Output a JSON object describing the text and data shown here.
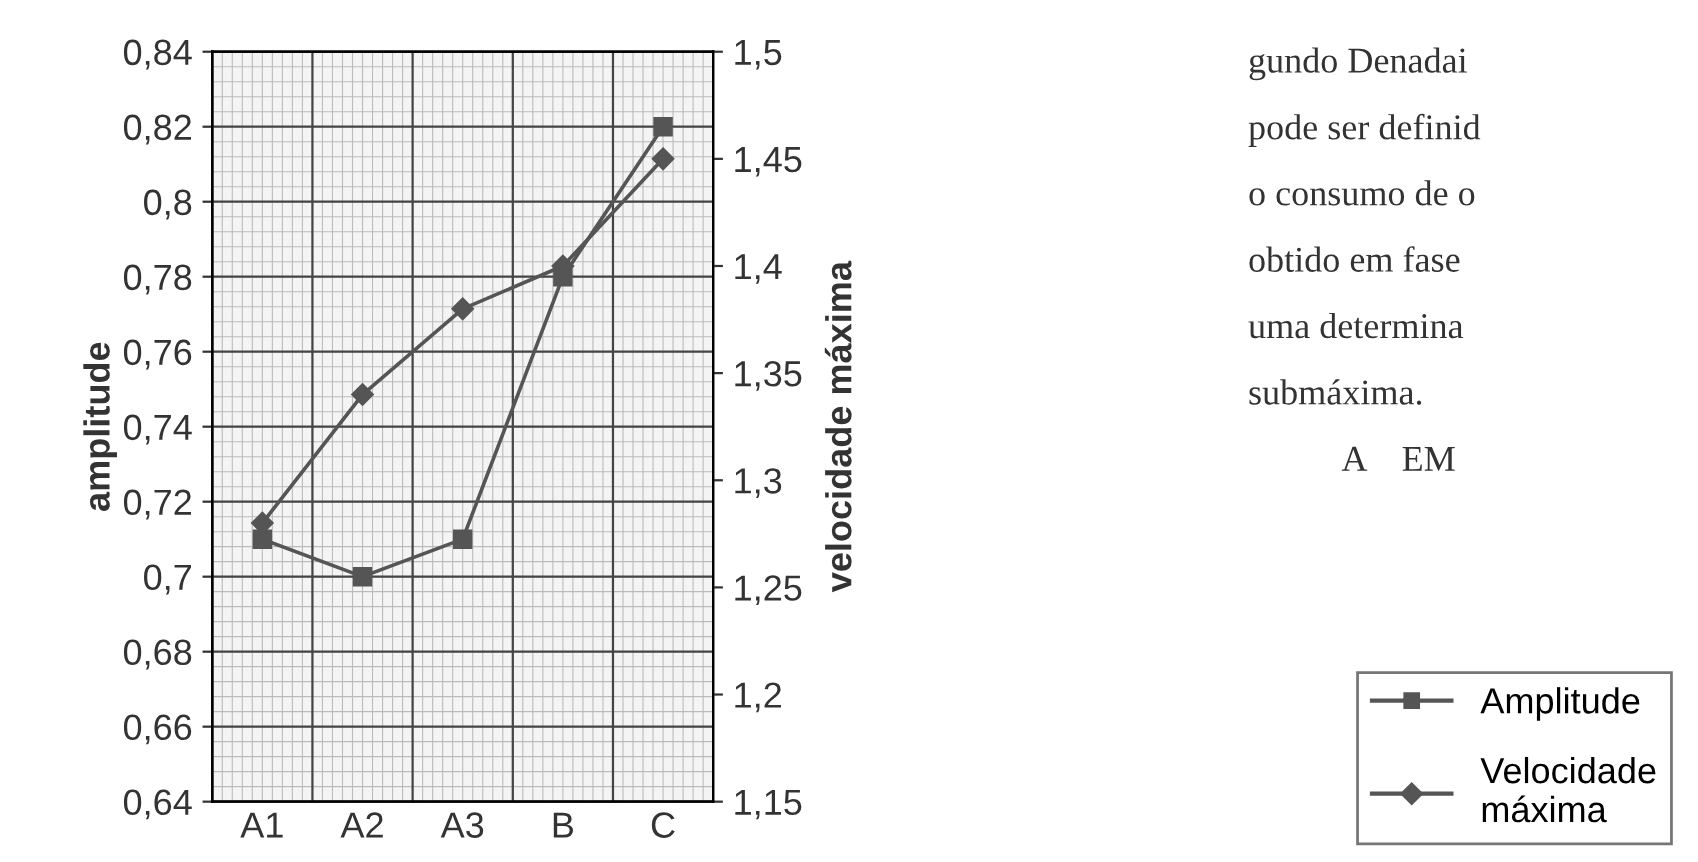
{
  "chart_data": {
    "type": "line",
    "ylabel": "amplitude",
    "y2label": "velocidade máxima",
    "categories": [
      "A1",
      "A2",
      "A3",
      "B",
      "C"
    ],
    "series": [
      {
        "name": "Amplitude",
        "color": "#555555",
        "values": [
          0.71,
          0.7,
          0.71,
          0.78,
          0.82
        ],
        "marker": "square"
      },
      {
        "name": "Velocidade máxima",
        "color": "#555555",
        "values": [
          1.28,
          1.34,
          1.38,
          1.4,
          1.45
        ],
        "marker": "diamond",
        "axis": "y2"
      }
    ],
    "ylim": [
      0.64,
      0.84
    ],
    "yticks": [
      {
        "value": 0.64,
        "label": "0,64"
      },
      {
        "value": 0.66,
        "label": "0,66"
      },
      {
        "value": 0.68,
        "label": "0,68"
      },
      {
        "value": 0.7,
        "label": "0,7"
      },
      {
        "value": 0.72,
        "label": "0,72"
      },
      {
        "value": 0.74,
        "label": "0,74"
      },
      {
        "value": 0.76,
        "label": "0,76"
      },
      {
        "value": 0.78,
        "label": "0,78"
      },
      {
        "value": 0.8,
        "label": "0,8"
      },
      {
        "value": 0.82,
        "label": "0,82"
      },
      {
        "value": 0.84,
        "label": "0,84"
      }
    ],
    "y2lim": [
      1.15,
      1.5
    ],
    "y2ticks": [
      {
        "value": 1.15,
        "label": "1,15"
      },
      {
        "value": 1.2,
        "label": "1,2"
      },
      {
        "value": 1.25,
        "label": "1,25"
      },
      {
        "value": 1.3,
        "label": "1,3"
      },
      {
        "value": 1.35,
        "label": "1,35"
      },
      {
        "value": 1.4,
        "label": "1,4"
      },
      {
        "value": 1.45,
        "label": "1,45"
      },
      {
        "value": 1.5,
        "label": "1,5"
      }
    ],
    "grid": true,
    "legend": "bottom right",
    "line_style": "solid",
    "annotations": [
      "gundo Denadai",
      "pode ser definid",
      "o consumo de o",
      "obtido em fase",
      "uma determina",
      "submáxima.",
      "A    EM"
    ]
  }
}
